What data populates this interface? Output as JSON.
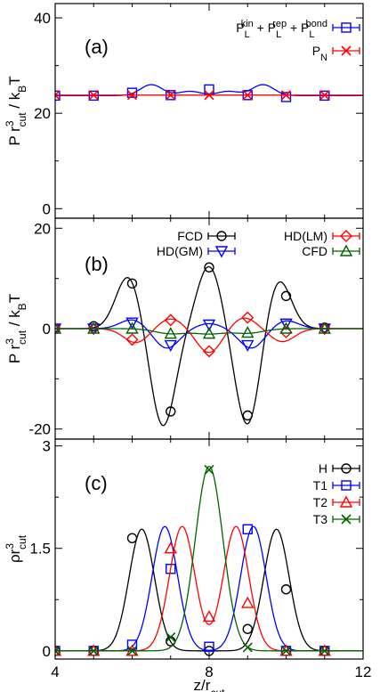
{
  "chart_data": {
    "x_axis": {
      "label": "z/r",
      "label_sub": "cut",
      "range": [
        4,
        12
      ],
      "ticks": [
        {
          "value": 4,
          "label": "4"
        },
        {
          "value": 8,
          "label": "8"
        },
        {
          "value": 12,
          "label": "12"
        }
      ]
    },
    "panels": [
      {
        "id": "a",
        "type": "line",
        "panel_label": "(a)",
        "ylabel": {
          "main": "P r",
          "sup": "3",
          "sub": "cut",
          "rest": " / k",
          "sub2": "B",
          "end": "T"
        },
        "ylim": [
          -2,
          43
        ],
        "yticks": [
          {
            "value": 0,
            "label": "0"
          },
          {
            "value": 20,
            "label": "20"
          },
          {
            "value": 40,
            "label": "40"
          }
        ],
        "series": [
          {
            "name_parts": [
              {
                "t": "P",
                "sub": "L",
                "sup": "kin"
              },
              {
                "t": " + P",
                "sub": "L",
                "sup": "rep"
              },
              {
                "t": " + P",
                "sub": "L",
                "sup": "bond"
              }
            ],
            "color": "#0000ff",
            "marker": "square",
            "points": [
              [
                4,
                23.7
              ],
              [
                5,
                23.7
              ],
              [
                6,
                24.3
              ],
              [
                7,
                23.8
              ],
              [
                8,
                25.0
              ],
              [
                9,
                23.8
              ],
              [
                10,
                23.4
              ],
              [
                11,
                23.7
              ]
            ],
            "curve_amp": [
              [
                6.5,
                2.3,
                0.28
              ],
              [
                7.5,
                0.9,
                0.28
              ],
              [
                8.5,
                0.9,
                0.28
              ],
              [
                9.4,
                2.3,
                0.28
              ]
            ],
            "baseline": 23.7
          },
          {
            "name_parts": [
              {
                "t": "P",
                "sub": "N"
              }
            ],
            "color": "#ff0000",
            "marker": "cross",
            "points": [
              [
                4,
                23.8
              ],
              [
                5,
                23.8
              ],
              [
                6,
                23.8
              ],
              [
                7,
                23.8
              ],
              [
                8,
                23.8
              ],
              [
                9,
                23.8
              ],
              [
                10,
                23.8
              ],
              [
                11,
                23.8
              ]
            ],
            "baseline": 23.8
          }
        ]
      },
      {
        "id": "b",
        "type": "line",
        "panel_label": "(b)",
        "ylabel": {
          "main": "P r",
          "sup": "3",
          "sub": "cut",
          "rest": " / k",
          "sub2": "B",
          "end": "T"
        },
        "ylim": [
          -22,
          22
        ],
        "yticks": [
          {
            "value": -20,
            "label": "-20"
          },
          {
            "value": 0,
            "label": "0"
          },
          {
            "value": 20,
            "label": "20"
          }
        ],
        "series": [
          {
            "name": "FCD",
            "color": "#000000",
            "marker": "circle",
            "points": [
              [
                4,
                0
              ],
              [
                5,
                0.5
              ],
              [
                6,
                9.0
              ],
              [
                7,
                -16.5
              ],
              [
                8,
                12.2
              ],
              [
                9,
                -17.3
              ],
              [
                10,
                6.5
              ],
              [
                11,
                0.2
              ]
            ],
            "gauss": [
              [
                5.9,
                10.5,
                0.32
              ],
              [
                6.8,
                -19.5,
                0.32
              ],
              [
                8.0,
                12.5,
                0.32
              ],
              [
                9.0,
                -19.5,
                0.32
              ],
              [
                9.8,
                10.0,
                0.32
              ]
            ]
          },
          {
            "name": "HD(GM)",
            "color": "#0000ff",
            "marker": "triangle-down",
            "points": [
              [
                4,
                0
              ],
              [
                5,
                0
              ],
              [
                6,
                1.2
              ],
              [
                7,
                -3.3
              ],
              [
                8,
                0.8
              ],
              [
                9,
                -3.3
              ],
              [
                10,
                1.0
              ],
              [
                11,
                0
              ]
            ],
            "gauss": [
              [
                6.0,
                1.8,
                0.32
              ],
              [
                6.9,
                -3.9,
                0.32
              ],
              [
                8.0,
                1.0,
                0.32
              ],
              [
                9.1,
                -3.9,
                0.32
              ],
              [
                10.0,
                1.6,
                0.32
              ]
            ]
          },
          {
            "name": "HD(LM)",
            "color": "#ff0000",
            "marker": "diamond",
            "points": [
              [
                4,
                0
              ],
              [
                5,
                0
              ],
              [
                6,
                -2.2
              ],
              [
                7,
                1.7
              ],
              [
                8,
                -4.5
              ],
              [
                9,
                2.2
              ],
              [
                10,
                -0.7
              ],
              [
                11,
                0
              ]
            ],
            "gauss": [
              [
                6.1,
                -2.8,
                0.32
              ],
              [
                7.0,
                2.0,
                0.32
              ],
              [
                8.0,
                -4.8,
                0.32
              ],
              [
                8.9,
                2.2,
                0.32
              ],
              [
                9.9,
                -2.6,
                0.32
              ]
            ]
          },
          {
            "name": "CFD",
            "color": "#006400",
            "marker": "triangle-up",
            "points": [
              [
                4,
                0
              ],
              [
                5,
                0
              ],
              [
                6,
                0
              ],
              [
                7,
                -1.0
              ],
              [
                8,
                -1.0
              ],
              [
                9,
                -0.8
              ],
              [
                10,
                0
              ],
              [
                11,
                0
              ]
            ],
            "gauss": [
              [
                7.0,
                -1.0,
                0.4
              ],
              [
                8.0,
                -1.0,
                0.4
              ],
              [
                9.0,
                -0.9,
                0.4
              ]
            ]
          }
        ]
      },
      {
        "id": "c",
        "type": "line",
        "panel_label": "(c)",
        "ylabel": {
          "main": "ρr",
          "sup": "3",
          "sub": "cut"
        },
        "ylim": [
          -0.12,
          3.1
        ],
        "yticks": [
          {
            "value": 0,
            "label": "0"
          },
          {
            "value": 1.5,
            "label": "1.5"
          },
          {
            "value": 3,
            "label": "3"
          }
        ],
        "series": [
          {
            "name": "H",
            "color": "#000000",
            "marker": "circle",
            "points": [
              [
                4,
                0
              ],
              [
                5,
                0
              ],
              [
                6,
                1.65
              ],
              [
                7,
                0.14
              ],
              [
                8,
                0
              ],
              [
                9,
                0.32
              ],
              [
                10,
                0.9
              ],
              [
                11,
                0
              ]
            ],
            "gauss": [
              [
                6.25,
                1.78,
                0.33
              ],
              [
                9.75,
                1.78,
                0.33
              ]
            ]
          },
          {
            "name": "T1",
            "color": "#0000ff",
            "marker": "square",
            "points": [
              [
                4,
                0
              ],
              [
                5,
                0
              ],
              [
                6,
                0.09
              ],
              [
                7,
                1.2
              ],
              [
                8,
                0.06
              ],
              [
                9,
                1.78
              ],
              [
                10,
                0
              ],
              [
                11,
                0
              ]
            ],
            "gauss": [
              [
                6.85,
                1.82,
                0.33
              ],
              [
                9.15,
                1.82,
                0.33
              ]
            ]
          },
          {
            "name": "T2",
            "color": "#ff0000",
            "marker": "triangle-up",
            "points": [
              [
                4,
                0
              ],
              [
                5,
                0
              ],
              [
                6,
                0
              ],
              [
                7,
                1.5
              ],
              [
                8,
                0.5
              ],
              [
                9,
                0.7
              ],
              [
                10,
                0
              ],
              [
                11,
                0
              ]
            ],
            "gauss": [
              [
                7.3,
                1.82,
                0.33
              ],
              [
                8.7,
                1.82,
                0.33
              ]
            ]
          },
          {
            "name": "T3",
            "color": "#006400",
            "marker": "cross",
            "points": [
              [
                4,
                0
              ],
              [
                5,
                0
              ],
              [
                6,
                0
              ],
              [
                7,
                0.2
              ],
              [
                8,
                2.65
              ],
              [
                9,
                0.05
              ],
              [
                10,
                0
              ],
              [
                11,
                0
              ]
            ],
            "gauss": [
              [
                8.0,
                2.7,
                0.36
              ]
            ]
          }
        ]
      }
    ]
  }
}
